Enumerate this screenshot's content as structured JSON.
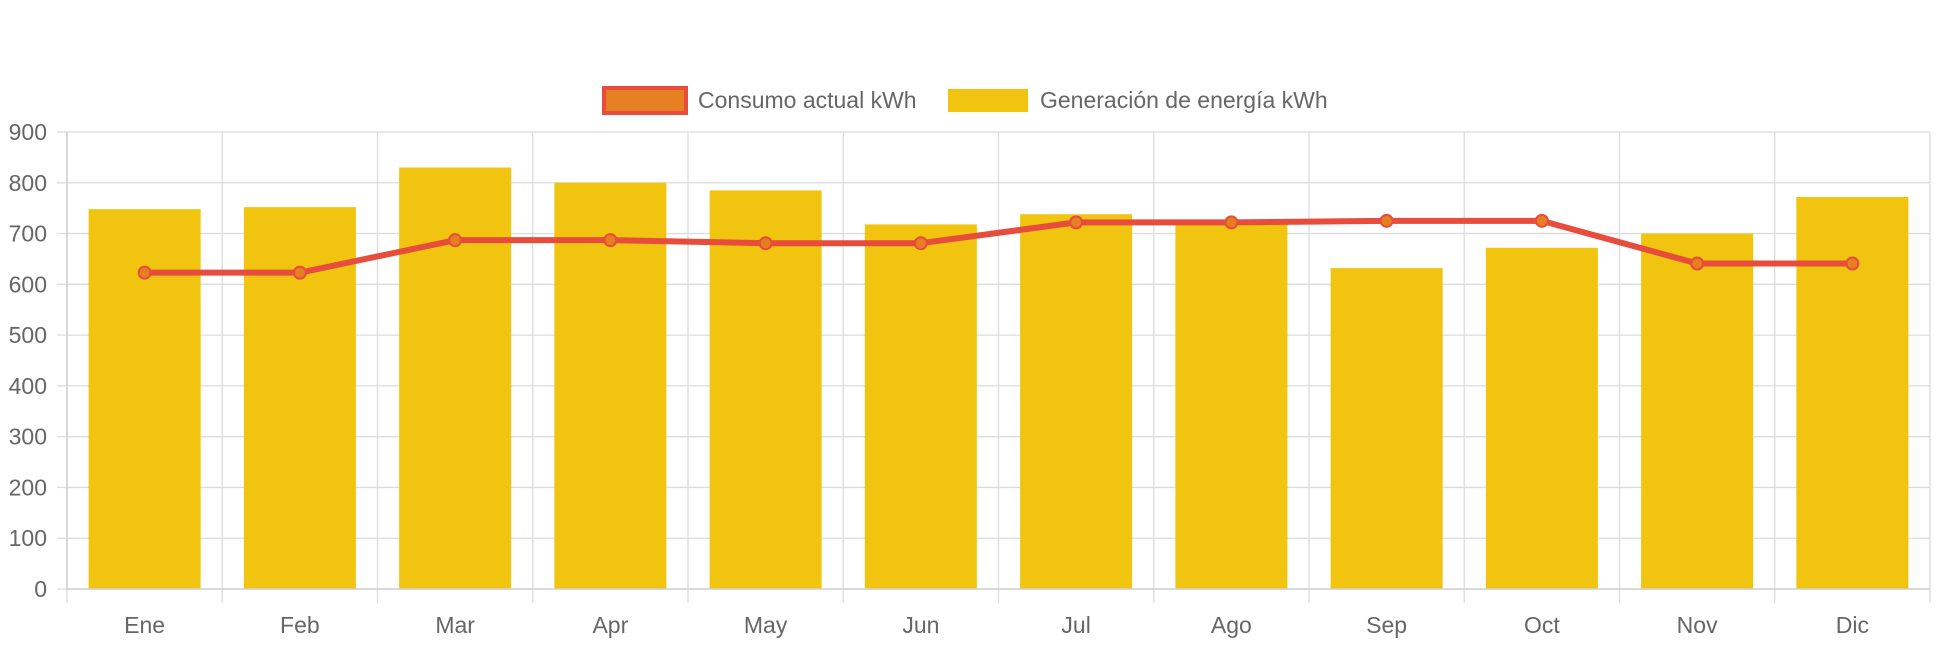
{
  "chart_data": {
    "type": "bar",
    "categories": [
      "Ene",
      "Feb",
      "Mar",
      "Apr",
      "May",
      "Jun",
      "Jul",
      "Ago",
      "Sep",
      "Oct",
      "Nov",
      "Dic"
    ],
    "series": [
      {
        "name": "Consumo actual kWh",
        "type": "line",
        "color": "#e74c3c",
        "fill": "#e67e22",
        "values": [
          623,
          623,
          687,
          687,
          681,
          681,
          722,
          722,
          725,
          725,
          641,
          641
        ]
      },
      {
        "name": "Generación de energía kWh",
        "type": "bar",
        "color": "#f1c40f",
        "values": [
          748,
          752,
          830,
          800,
          785,
          718,
          738,
          722,
          632,
          672,
          700,
          772
        ]
      }
    ],
    "ylim": [
      0,
      900
    ],
    "yticks": [
      0,
      100,
      200,
      300,
      400,
      500,
      600,
      700,
      800,
      900
    ],
    "grid": true,
    "legend_position": "top-center",
    "title": "",
    "xlabel": "",
    "ylabel": ""
  }
}
